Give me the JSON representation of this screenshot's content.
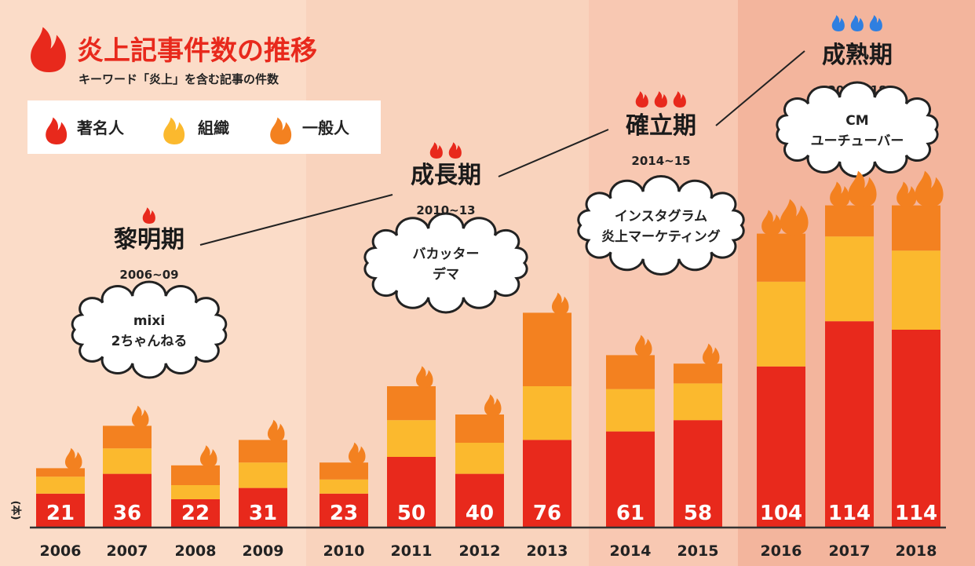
{
  "title": "炎上記事件数の推移",
  "subtitle": "キーワード「炎上」を含む記事の件数",
  "legend": [
    {
      "label": "著名人",
      "color": "#e8291c"
    },
    {
      "label": "組織",
      "color": "#fbb92e"
    },
    {
      "label": "一般人",
      "color": "#f38120"
    }
  ],
  "unit_label": "(本)",
  "periods": [
    {
      "name": "黎明期",
      "years": "2006~09",
      "flames": 1,
      "flame_color": "#e8291c",
      "cloud": [
        "mixi",
        "2ちゃんねる"
      ]
    },
    {
      "name": "成長期",
      "years": "2010~13",
      "flames": 2,
      "flame_color": "#e8291c",
      "cloud": [
        "バカッター",
        "デマ"
      ]
    },
    {
      "name": "確立期",
      "years": "2014~15",
      "flames": 3,
      "flame_color": "#e8291c",
      "cloud": [
        "インスタグラム",
        "炎上マーケティング"
      ]
    },
    {
      "name": "成熟期",
      "years": "2016~18",
      "flames": 3,
      "flame_color": "#2f7fe0",
      "cloud": [
        "CM",
        "ユーチューバー"
      ]
    }
  ],
  "chart_data": {
    "type": "bar",
    "stacked": true,
    "title": "炎上記事件数の推移",
    "subtitle": "キーワード「炎上」を含む記事の件数",
    "xlabel": "",
    "ylabel": "(本)",
    "categories": [
      "2006",
      "2007",
      "2008",
      "2009",
      "2010",
      "2011",
      "2012",
      "2013",
      "2014",
      "2015",
      "2016",
      "2017",
      "2018"
    ],
    "totals": [
      21,
      36,
      22,
      31,
      23,
      50,
      40,
      76,
      61,
      58,
      104,
      114,
      114
    ],
    "series": [
      {
        "name": "著名人",
        "color": "#e8291c",
        "values": [
          12,
          19,
          10,
          14,
          12,
          25,
          19,
          31,
          34,
          38,
          57,
          73,
          70
        ]
      },
      {
        "name": "組織",
        "color": "#fbb92e",
        "values": [
          6,
          9,
          5,
          9,
          5,
          13,
          11,
          19,
          15,
          13,
          30,
          30,
          28
        ]
      },
      {
        "name": "一般人",
        "color": "#f38120",
        "values": [
          3,
          8,
          7,
          8,
          6,
          12,
          10,
          26,
          12,
          7,
          17,
          11,
          16
        ]
      }
    ],
    "ylim": [
      0,
      125
    ],
    "grid": false,
    "legend_position": "top-left"
  }
}
